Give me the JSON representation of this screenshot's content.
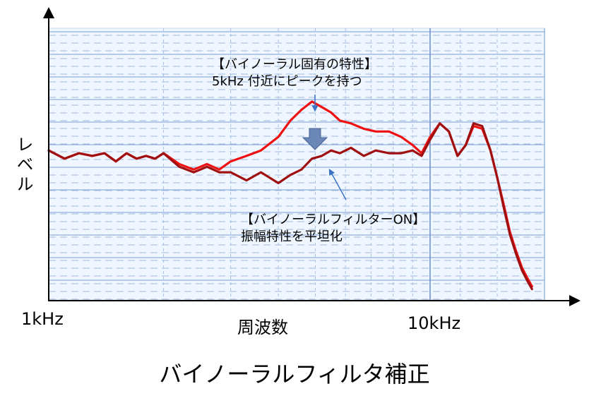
{
  "chart_data": {
    "type": "line",
    "title": "バイノーラルフィルタ補正",
    "xlabel": "周波数",
    "ylabel": "レベル",
    "x_scale": "log",
    "xlim": [
      1000,
      18500
    ],
    "x_ticks": [
      {
        "value": 1000,
        "label": "1kHz"
      },
      {
        "value": 10000,
        "label": "10kHz"
      }
    ],
    "ylim": [
      0,
      100
    ],
    "grid": true,
    "annotations": [
      {
        "id": "peak",
        "lines": [
          "【バイノーラル固有の特性】",
          "5kHz 付近にピークを持つ"
        ]
      },
      {
        "id": "flat",
        "lines": [
          "【バイノーラルフィルターON】",
          "振幅特性を平坦化"
        ]
      }
    ],
    "series": [
      {
        "color": "#ee1111",
        "x": [
          1000,
          1100,
          1200,
          1300,
          1400,
          1500,
          1600,
          1700,
          1800,
          1900,
          2000,
          2200,
          2400,
          2600,
          2800,
          3000,
          3300,
          3600,
          4000,
          4300,
          4600,
          4900,
          5200,
          5500,
          5800,
          6200,
          6700,
          7200,
          7800,
          8400,
          9000,
          9500,
          10000,
          10600,
          11200,
          11800,
          12400,
          13000,
          13700,
          14400,
          15000,
          15600,
          16200,
          16800,
          17400,
          18000,
          18500
        ],
        "y": [
          55,
          52,
          54,
          53,
          54,
          51,
          54,
          52,
          53,
          52,
          54,
          50,
          48,
          50,
          48,
          51,
          53,
          55,
          60,
          66,
          70,
          73,
          71,
          69,
          66,
          65,
          63,
          62,
          62,
          60,
          57,
          54,
          60,
          65,
          62,
          53,
          57,
          64,
          63,
          55,
          45,
          35,
          25,
          18,
          12,
          8,
          5
        ]
      },
      {
        "color": "#a01010",
        "x": [
          1000,
          1100,
          1200,
          1300,
          1400,
          1500,
          1600,
          1700,
          1800,
          1900,
          2000,
          2200,
          2400,
          2600,
          2800,
          3000,
          3300,
          3600,
          4000,
          4300,
          4600,
          4900,
          5200,
          5500,
          5800,
          6200,
          6700,
          7200,
          7800,
          8400,
          9000,
          9500,
          10000,
          10600,
          11200,
          11800,
          12400,
          13000,
          13700,
          14400,
          15000,
          15600,
          16200,
          16800,
          17400,
          18000,
          18500
        ],
        "y": [
          55,
          52,
          54,
          53,
          54,
          51,
          54,
          52,
          53,
          52,
          54,
          49,
          47,
          49,
          47,
          47,
          44,
          47,
          43,
          46,
          48,
          52,
          53,
          55,
          54,
          56,
          53,
          55,
          54,
          54,
          55,
          53,
          59,
          65,
          62,
          53,
          57,
          65,
          64,
          55,
          45,
          34,
          24,
          17,
          11,
          7,
          4
        ]
      }
    ]
  }
}
